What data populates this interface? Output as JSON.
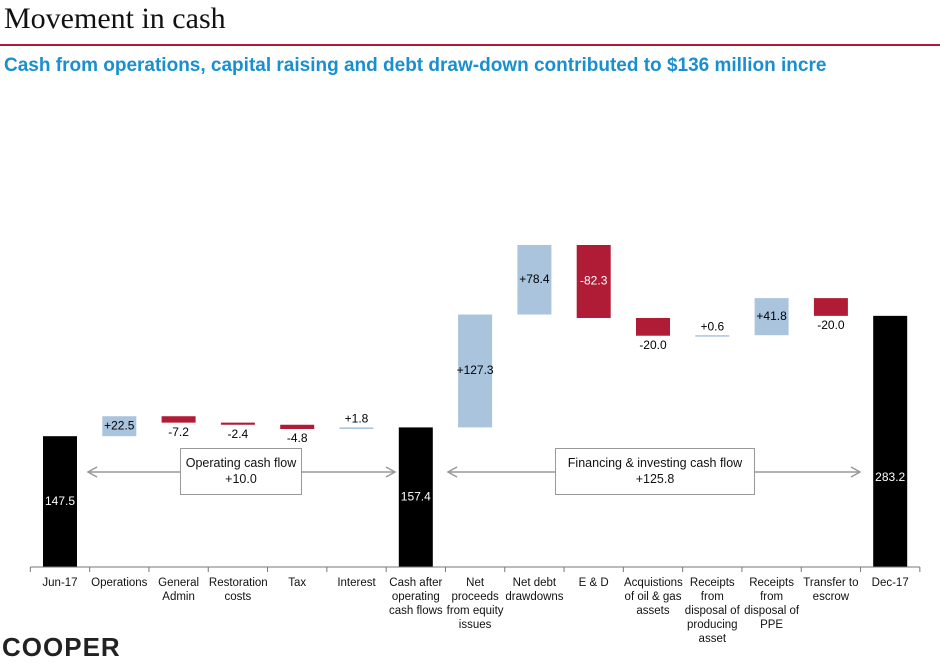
{
  "header": {
    "title": "Movement in cash",
    "subtitle": "Cash from operations, capital raising and debt draw-down contributed to $136 million incre",
    "logo": "COOPER"
  },
  "chart_data": {
    "type": "waterfall",
    "categories": [
      "Jun-17",
      "Operations",
      "General Admin",
      "Restoration costs",
      "Tax",
      "Interest",
      "Cash after operating cash flows",
      "Net proceeds from equity issues",
      "Net debt drawdowns",
      "E & D",
      "Acquistions of oil & gas assets",
      "Receipts from disposal of producing asset",
      "Receipts from disposal of PPE",
      "Transfer to escrow",
      "Dec-17"
    ],
    "values": [
      147.5,
      22.5,
      -7.2,
      -2.4,
      -4.8,
      1.8,
      157.4,
      127.3,
      78.4,
      -82.3,
      -20.0,
      0.6,
      41.8,
      -20.0,
      283.2
    ],
    "value_labels": [
      "147.5",
      "+22.5",
      "-7.2",
      "-2.4",
      "-4.8",
      "+1.8",
      "157.4",
      "+127.3",
      "+78.4",
      "-82.3",
      "-20.0",
      "+0.6",
      "+41.8",
      "-20.0",
      "283.2"
    ],
    "kinds": [
      "total",
      "delta",
      "delta",
      "delta",
      "delta",
      "delta",
      "total",
      "delta",
      "delta",
      "delta",
      "delta",
      "delta",
      "delta",
      "delta",
      "total"
    ],
    "colors": {
      "total": "#000000",
      "increase": "#a9c4dc",
      "decrease": "#b01c35"
    },
    "annotations": [
      {
        "title": "Operating cash flow",
        "value": "+10.0"
      },
      {
        "title": "Financing & investing cash flow",
        "value": "+125.8"
      }
    ]
  }
}
